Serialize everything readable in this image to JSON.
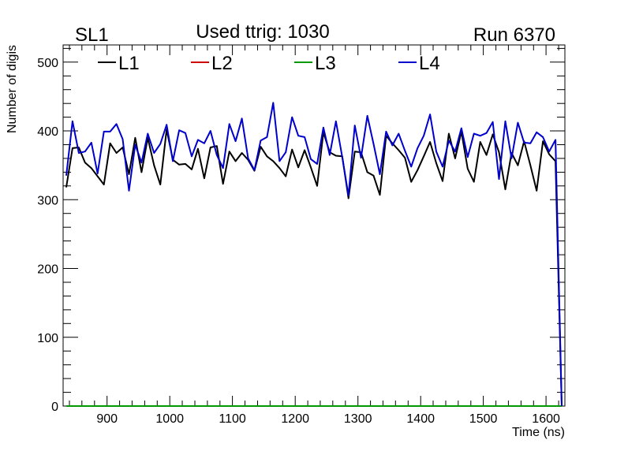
{
  "chart_data": {
    "type": "line",
    "title": "Used ttrig: 1030",
    "label_left": "SL1",
    "label_right": "Run 6370",
    "xlabel": "Time (ns)",
    "ylabel": "Number of digis",
    "xlim": [
      830,
      1630
    ],
    "ylim": [
      0,
      525
    ],
    "x_ticks": [
      900,
      1000,
      1100,
      1200,
      1300,
      1400,
      1500,
      1600
    ],
    "y_ticks": [
      0,
      100,
      200,
      300,
      400,
      500
    ],
    "grid": false,
    "legend_position": "top-left",
    "x": [
      835,
      845,
      855,
      865,
      875,
      885,
      895,
      905,
      915,
      925,
      935,
      945,
      955,
      965,
      975,
      985,
      995,
      1005,
      1015,
      1025,
      1035,
      1045,
      1055,
      1065,
      1075,
      1085,
      1095,
      1105,
      1115,
      1125,
      1135,
      1145,
      1155,
      1165,
      1175,
      1185,
      1195,
      1205,
      1215,
      1225,
      1235,
      1245,
      1255,
      1265,
      1275,
      1285,
      1295,
      1305,
      1315,
      1325,
      1335,
      1345,
      1355,
      1365,
      1375,
      1385,
      1395,
      1405,
      1415,
      1425,
      1435,
      1445,
      1455,
      1465,
      1475,
      1485,
      1495,
      1505,
      1515,
      1525,
      1535,
      1545,
      1555,
      1565,
      1575,
      1585,
      1595,
      1605,
      1615,
      1625
    ],
    "series": [
      {
        "name": "L1",
        "color": "#000000",
        "values": [
          318,
          375,
          376,
          354,
          346,
          334,
          322,
          382,
          368,
          376,
          337,
          390,
          340,
          390,
          350,
          322,
          402,
          358,
          351,
          352,
          344,
          374,
          331,
          376,
          378,
          323,
          370,
          356,
          368,
          358,
          342,
          377,
          363,
          356,
          346,
          334,
          373,
          347,
          372,
          347,
          320,
          398,
          369,
          364,
          363,
          302,
          370,
          369,
          340,
          335,
          307,
          393,
          382,
          372,
          361,
          326,
          343,
          363,
          384,
          353,
          327,
          396,
          360,
          399,
          345,
          326,
          384,
          365,
          395,
          369,
          315,
          368,
          350,
          385,
          350,
          313,
          385,
          366,
          356,
          0
        ]
      },
      {
        "name": "L2",
        "color": "#cc0000",
        "values": [
          0,
          0,
          0,
          0,
          0,
          0,
          0,
          0,
          0,
          0,
          0,
          0,
          0,
          0,
          0,
          0,
          0,
          0,
          0,
          0,
          0,
          0,
          0,
          0,
          0,
          0,
          0,
          0,
          0,
          0,
          0,
          0,
          0,
          0,
          0,
          0,
          0,
          0,
          0,
          0,
          0,
          0,
          0,
          0,
          0,
          0,
          0,
          0,
          0,
          0,
          0,
          0,
          0,
          0,
          0,
          0,
          0,
          0,
          0,
          0,
          0,
          0,
          0,
          0,
          0,
          0,
          0,
          0,
          0,
          0,
          0,
          0,
          0,
          0,
          0,
          0,
          0,
          0,
          0,
          0
        ]
      },
      {
        "name": "L3",
        "color": "#009900",
        "values": [
          0,
          0,
          0,
          0,
          0,
          0,
          0,
          0,
          0,
          0,
          0,
          0,
          0,
          0,
          0,
          0,
          0,
          0,
          0,
          0,
          0,
          0,
          0,
          0,
          0,
          0,
          0,
          0,
          0,
          0,
          0,
          0,
          0,
          0,
          0,
          0,
          0,
          0,
          0,
          0,
          0,
          0,
          0,
          0,
          0,
          0,
          0,
          0,
          0,
          0,
          0,
          0,
          0,
          0,
          0,
          0,
          0,
          0,
          0,
          0,
          0,
          0,
          0,
          0,
          0,
          0,
          0,
          0,
          0,
          0,
          0,
          0,
          0,
          0,
          0,
          0,
          0,
          0,
          0,
          0
        ]
      },
      {
        "name": "L4",
        "color": "#0000cc",
        "values": [
          335,
          414,
          368,
          370,
          383,
          338,
          399,
          399,
          410,
          388,
          313,
          380,
          354,
          396,
          368,
          381,
          409,
          356,
          401,
          397,
          363,
          387,
          382,
          400,
          365,
          346,
          410,
          385,
          418,
          360,
          343,
          386,
          391,
          441,
          356,
          369,
          420,
          393,
          391,
          359,
          352,
          405,
          365,
          414,
          362,
          306,
          408,
          361,
          422,
          381,
          337,
          399,
          379,
          396,
          371,
          348,
          375,
          393,
          424,
          370,
          348,
          386,
          370,
          404,
          362,
          396,
          393,
          397,
          413,
          330,
          414,
          360,
          412,
          383,
          382,
          398,
          391,
          370,
          387,
          0
        ]
      }
    ]
  }
}
